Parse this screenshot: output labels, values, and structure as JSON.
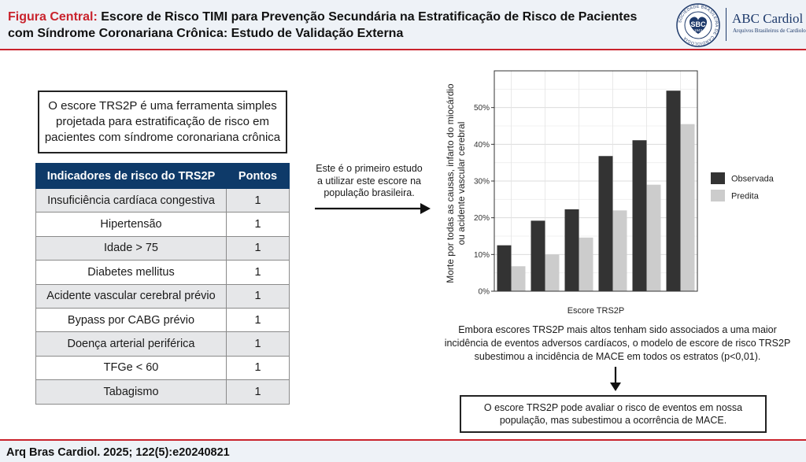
{
  "header": {
    "lead": "Figura Central:",
    "title": "Escore de Risco TIMI para Prevenção Secundária na Estratificação de Risco de Pacientes com Síndrome Coronariana Crônica: Estudo de Validação Externa",
    "sbc_logo_text": "SBC",
    "sbc_ring_text": "SOCIEDADE BRASILEIRA DE CARDIOLOGIA",
    "sbc_year": "1943",
    "journal_name": "ABC Cardiol",
    "journal_subtitle": "Arquivos Brasileiros de Cardiologia"
  },
  "intro": "O escore TRS2P é uma ferramenta simples projetada para estratificação de risco em pacientes com síndrome coronariana crônica",
  "table": {
    "headers": [
      "Indicadores de risco do TRS2P",
      "Pontos"
    ],
    "rows": [
      {
        "indicator": "Insuficiência cardíaca congestiva",
        "points": "1"
      },
      {
        "indicator": "Hipertensão",
        "points": "1"
      },
      {
        "indicator": "Idade > 75",
        "points": "1"
      },
      {
        "indicator": "Diabetes mellitus",
        "points": "1"
      },
      {
        "indicator": "Acidente vascular cerebral prévio",
        "points": "1"
      },
      {
        "indicator": "Bypass por CABG prévio",
        "points": "1"
      },
      {
        "indicator": "Doença arterial periférica",
        "points": "1"
      },
      {
        "indicator": "TFGe < 60",
        "points": "1"
      },
      {
        "indicator": "Tabagismo",
        "points": "1"
      }
    ]
  },
  "study_note": "Este é o primeiro estudo a utilizar este escore na população brasileira.",
  "chart_data": {
    "type": "bar",
    "xlabel": "Escore TRS2P",
    "ylabel": "Morte por todas as causas, infarto do miocárdio ou acidente vascular cerebral",
    "categories": [
      "",
      "",
      "",
      "",
      "",
      ""
    ],
    "series": [
      {
        "name": "Observada",
        "color": "#333333",
        "values": [
          12.5,
          19.2,
          22.3,
          36.8,
          41.1,
          54.6
        ]
      },
      {
        "name": "Predita",
        "color": "#cccccc",
        "values": [
          6.8,
          10.0,
          14.6,
          22.0,
          29.0,
          45.5
        ]
      }
    ],
    "ylim": [
      0,
      60
    ],
    "yticks": [
      "0%",
      "10%",
      "20%",
      "30%",
      "40%",
      "50%"
    ],
    "grid": true,
    "legend_position": "right"
  },
  "finding": "Embora escores TRS2P mais altos tenham sido associados a uma maior incidência de eventos adversos cardíacos, o modelo de escore de risco TRS2P subestimou a incidência de MACE em todos os estratos (p<0,01).",
  "conclusion": "O escore TRS2P pode avaliar o risco de eventos em nossa população, mas subestimou a ocorrência de MACE.",
  "footer": {
    "citation": "Arq Bras Cardiol. 2025; 122(5):e20240821"
  }
}
